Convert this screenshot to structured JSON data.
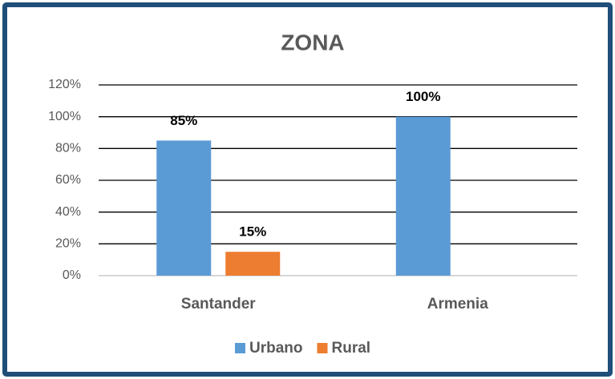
{
  "chart_data": {
    "type": "bar",
    "title": "ZONA",
    "categories": [
      "Santander",
      "Armenia"
    ],
    "series": [
      {
        "name": "Urbano",
        "color": "#5b9bd5",
        "values": [
          85,
          100
        ],
        "value_labels": [
          "85%",
          "100%"
        ]
      },
      {
        "name": "Rural",
        "color": "#ed7d31",
        "values": [
          15,
          null
        ],
        "value_labels": [
          "15%",
          null
        ]
      }
    ],
    "ylim": [
      0,
      120
    ],
    "yticks": [
      {
        "value": 0,
        "label": "0%"
      },
      {
        "value": 20,
        "label": "20%"
      },
      {
        "value": 40,
        "label": "40%"
      },
      {
        "value": 60,
        "label": "60%"
      },
      {
        "value": 80,
        "label": "80%"
      },
      {
        "value": 100,
        "label": "100%"
      },
      {
        "value": 120,
        "label": "120%"
      }
    ],
    "grid": true,
    "legend": "bottom"
  }
}
